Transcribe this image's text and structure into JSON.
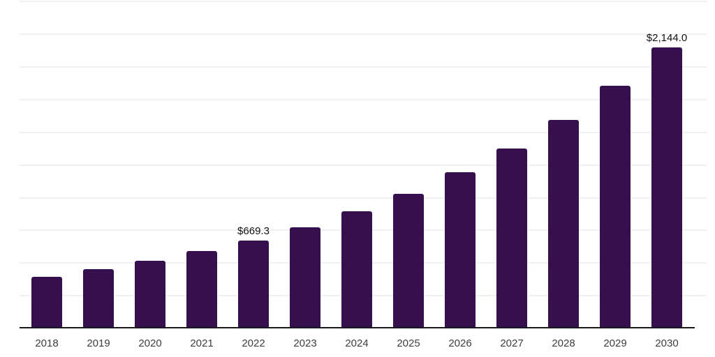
{
  "chart_data": {
    "type": "bar",
    "title": "",
    "xlabel": "",
    "ylabel": "",
    "categories": [
      "2018",
      "2019",
      "2020",
      "2021",
      "2022",
      "2023",
      "2024",
      "2025",
      "2026",
      "2027",
      "2028",
      "2029",
      "2030"
    ],
    "values": [
      390,
      450,
      514,
      585,
      669.3,
      766,
      889,
      1022,
      1187,
      1372,
      1591,
      1848,
      2144.0
    ],
    "data_labels": [
      "",
      "",
      "",
      "",
      "$669.3",
      "",
      "",
      "",
      "",
      "",
      "",
      "",
      "$2,144.0"
    ],
    "ylim": [
      0,
      2500
    ],
    "gridline_step": 250,
    "grid": true,
    "legend_position": "none",
    "bar_color": "#36104E",
    "gridline_color": "#F1F1F4",
    "axis_line_color": "#1A1A1A",
    "tick_label_color": "#3D3D3D",
    "value_label_color": "#111111"
  }
}
